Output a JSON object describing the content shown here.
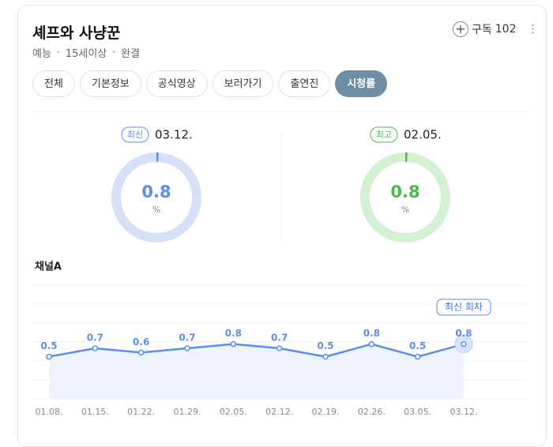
{
  "header": {
    "title": "셰프와 사냥꾼",
    "meta": [
      "예능",
      "15세이상",
      "완결"
    ],
    "subscribe": "구독",
    "subscribers": 102
  },
  "tabs": [
    {
      "label": "전체",
      "active": false
    },
    {
      "label": "기본정보",
      "active": false
    },
    {
      "label": "공식영상",
      "active": false
    },
    {
      "label": "보러가기",
      "active": false
    },
    {
      "label": "출연진",
      "active": false
    },
    {
      "label": "시청률",
      "active": true
    }
  ],
  "ratings": [
    {
      "badge": "최신",
      "date": "03.12.",
      "value": 0.8,
      "unit": "%",
      "color": "#5b8def",
      "track": "#d6e1f9"
    },
    {
      "badge": "최고",
      "date": "02.05.",
      "value": 0.8,
      "unit": "%",
      "color": "#4cb84c",
      "track": "#d3f0d3"
    }
  ],
  "chart_data": {
    "type": "line",
    "title": "채널A",
    "categories": [
      "01.08.",
      "01.15.",
      "01.22.",
      "01.29.",
      "02.05.",
      "02.12.",
      "02.19.",
      "02.26.",
      "03.05.",
      "03.12."
    ],
    "values": [
      0.5,
      0.7,
      0.6,
      0.7,
      0.8,
      0.7,
      0.5,
      0.8,
      0.5,
      0.8
    ],
    "color": "#5b8def",
    "ylim": [
      -0.5,
      2.2
    ],
    "annotation": "최신 회차"
  }
}
